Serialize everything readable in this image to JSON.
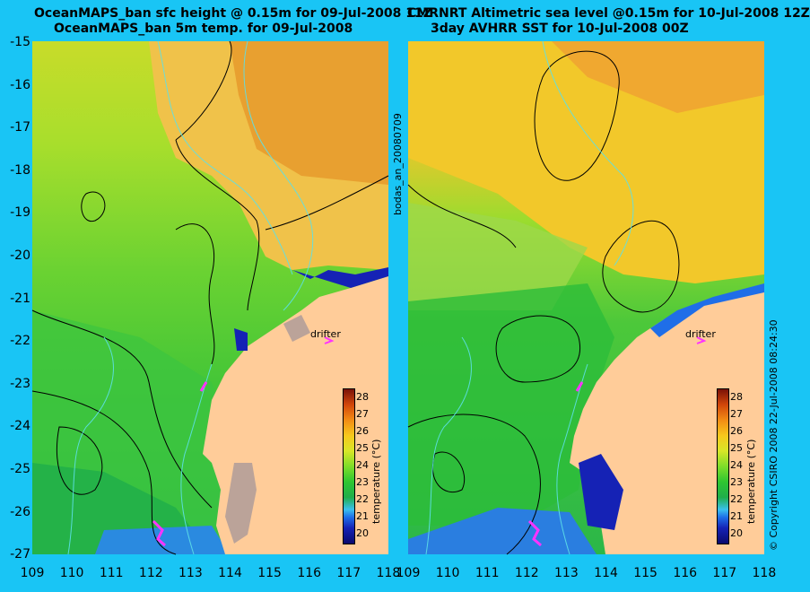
{
  "left_panel": {
    "title_line1": "OceanMAPS_ban sfc height @ 0.15m for 09-Jul-2008 11Z",
    "title_line2": "OceanMAPS_ban 5m temp. for 09-Jul-2008",
    "side_label": "bodas_an_20080709"
  },
  "right_panel": {
    "title_line1": "CMRNRT Altimetric sea level  @0.15m  for 10-Jul-2008 12Z",
    "title_line2": "3day AVHRR SST for 10-Jul-2008 00Z",
    "side_label": "© Copyright CSIRO 2008   22-Jul-2008 08:24:30"
  },
  "map": {
    "lat_labels": [
      "-15",
      "-16",
      "-17",
      "-18",
      "-19",
      "-20",
      "-21",
      "-22",
      "-23",
      "-24",
      "-25",
      "-26",
      "-27"
    ],
    "lon_labels": [
      "109",
      "110",
      "111",
      "112",
      "113",
      "114",
      "115",
      "116",
      "117",
      "118"
    ],
    "drifter_label": "drifter",
    "colorbar_title": "temperature (°C)",
    "colorbar_ticks": [
      "28",
      "27",
      "26",
      "25",
      "24",
      "23",
      "22",
      "21",
      "20"
    ]
  },
  "colors": {
    "background": "#19c5f5",
    "land": "#ffcc99",
    "drifter": "#ff33ff",
    "bathymetry": "#5de0e8"
  }
}
